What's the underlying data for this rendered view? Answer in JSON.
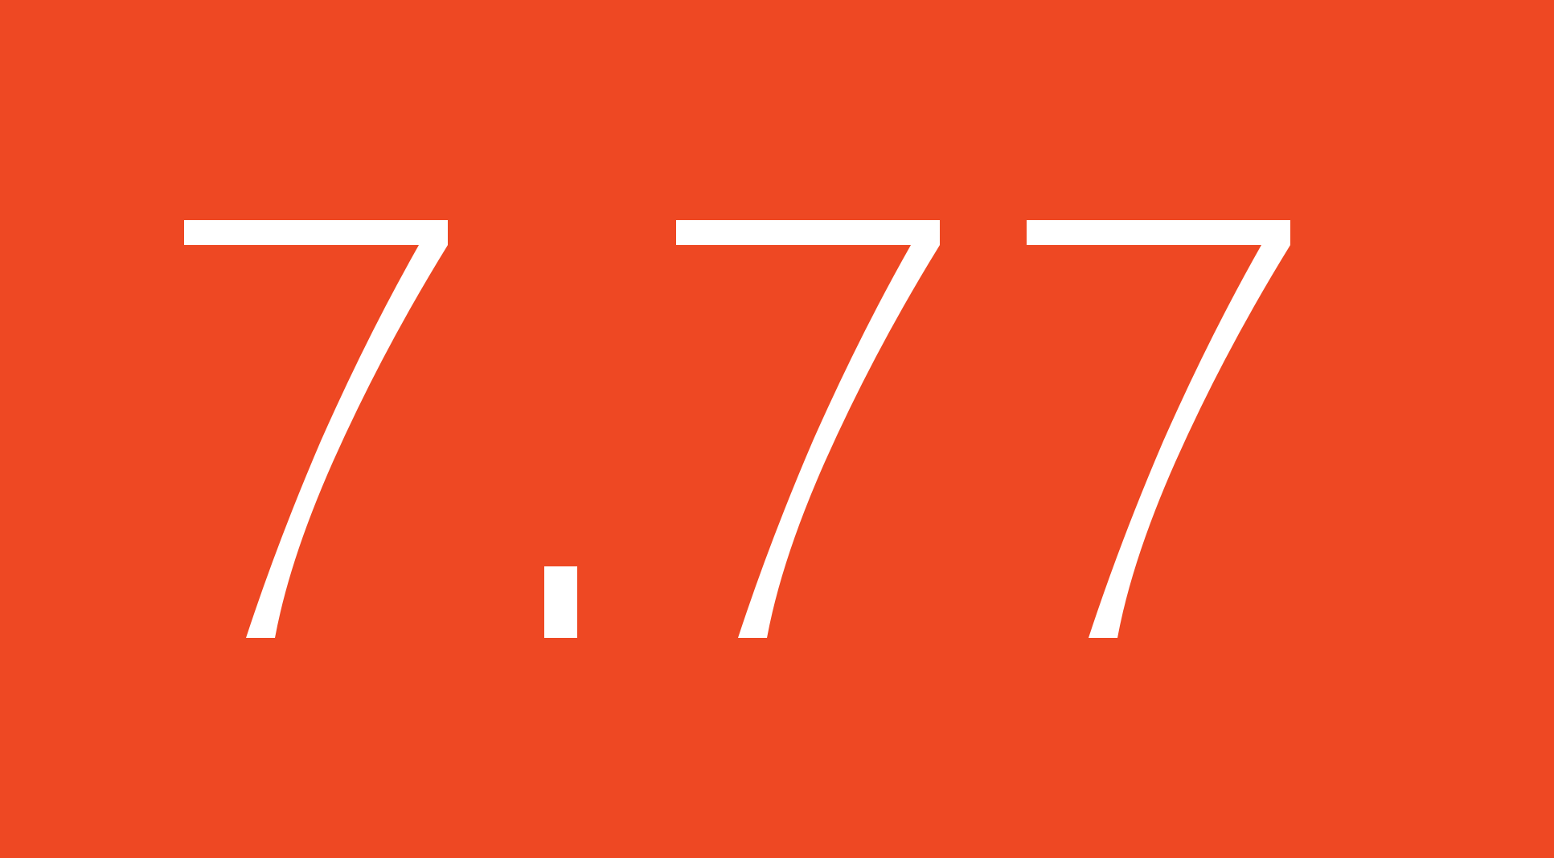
{
  "display": {
    "value": "7.77",
    "background_color": "#ee4823",
    "text_color": "#ffffff"
  }
}
